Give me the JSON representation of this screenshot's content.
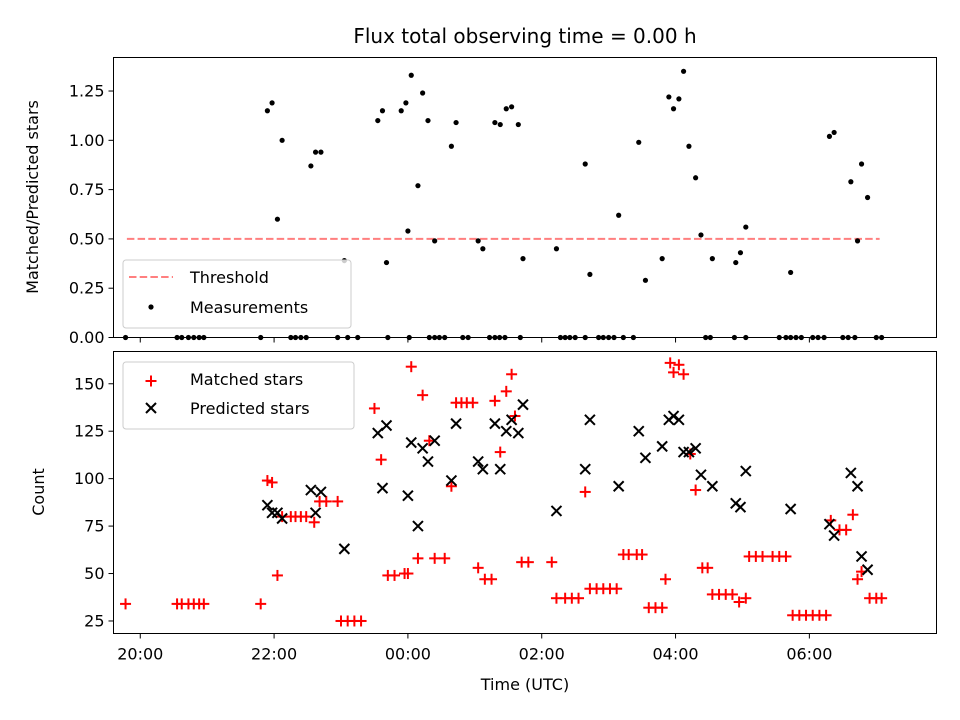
{
  "figure": {
    "title": "Flux total observing time = 0.00 h",
    "xlabel": "Time (UTC)"
  },
  "chart_data": [
    {
      "type": "scatter",
      "panel": "top",
      "ylabel": "Matched/Predicted stars",
      "xlim": [
        19.6,
        31.9
      ],
      "ylim": [
        0.0,
        1.42
      ],
      "yticks": [
        "0.00",
        "0.25",
        "0.50",
        "0.75",
        "1.00",
        "1.25"
      ],
      "threshold": {
        "name": "Threshold",
        "y": 0.5,
        "x": [
          19.8,
          31.05
        ],
        "color": "#ff7f7f"
      },
      "series": [
        {
          "name": "Measurements",
          "color": "#000000",
          "points": [
            [
              19.78,
              0.0
            ],
            [
              20.55,
              0.0
            ],
            [
              20.62,
              0.0
            ],
            [
              20.72,
              0.0
            ],
            [
              20.8,
              0.0
            ],
            [
              20.88,
              0.0
            ],
            [
              20.95,
              0.0
            ],
            [
              21.8,
              0.0
            ],
            [
              22.25,
              0.0
            ],
            [
              22.32,
              0.0
            ],
            [
              22.4,
              0.0
            ],
            [
              22.48,
              0.0
            ],
            [
              22.95,
              0.0
            ],
            [
              23.1,
              0.0
            ],
            [
              23.25,
              0.0
            ],
            [
              23.7,
              0.0
            ],
            [
              23.9,
              1.15
            ],
            [
              23.97,
              1.19
            ],
            [
              24.02,
              0.0
            ],
            [
              24.32,
              0.0
            ],
            [
              24.4,
              0.0
            ],
            [
              24.47,
              0.0
            ],
            [
              24.55,
              0.0
            ],
            [
              24.82,
              0.0
            ],
            [
              24.9,
              0.0
            ],
            [
              25.22,
              0.0
            ],
            [
              25.3,
              0.0
            ],
            [
              25.37,
              0.0
            ],
            [
              25.45,
              0.0
            ],
            [
              25.68,
              0.0
            ],
            [
              26.28,
              0.0
            ],
            [
              26.35,
              0.0
            ],
            [
              26.42,
              0.0
            ],
            [
              26.5,
              0.0
            ],
            [
              26.65,
              0.0
            ],
            [
              26.85,
              0.0
            ],
            [
              26.92,
              0.0
            ],
            [
              27.0,
              0.0
            ],
            [
              27.08,
              0.0
            ],
            [
              27.22,
              0.0
            ],
            [
              27.37,
              0.0
            ],
            [
              28.45,
              0.0
            ],
            [
              28.52,
              0.0
            ],
            [
              28.88,
              0.0
            ],
            [
              29.05,
              0.0
            ],
            [
              29.55,
              0.0
            ],
            [
              29.65,
              0.0
            ],
            [
              29.72,
              0.0
            ],
            [
              29.8,
              0.0
            ],
            [
              29.88,
              0.0
            ],
            [
              30.05,
              0.0
            ],
            [
              30.13,
              0.0
            ],
            [
              30.22,
              0.0
            ],
            [
              30.5,
              0.0
            ],
            [
              30.58,
              0.0
            ],
            [
              30.68,
              0.0
            ],
            [
              31.0,
              0.0
            ],
            [
              31.08,
              0.0
            ],
            [
              21.9,
              1.15
            ],
            [
              21.97,
              1.19
            ],
            [
              22.05,
              0.6
            ],
            [
              22.12,
              1.0
            ],
            [
              22.55,
              0.87
            ],
            [
              22.62,
              0.94
            ],
            [
              22.7,
              0.94
            ],
            [
              23.05,
              0.39
            ],
            [
              23.55,
              1.1
            ],
            [
              23.62,
              1.15
            ],
            [
              23.68,
              0.38
            ],
            [
              24.0,
              0.54
            ],
            [
              24.05,
              1.33
            ],
            [
              24.15,
              0.77
            ],
            [
              24.22,
              1.24
            ],
            [
              24.3,
              1.1
            ],
            [
              24.4,
              0.49
            ],
            [
              24.65,
              0.97
            ],
            [
              24.72,
              1.09
            ],
            [
              25.05,
              0.49
            ],
            [
              25.12,
              0.45
            ],
            [
              25.3,
              1.09
            ],
            [
              25.38,
              1.08
            ],
            [
              25.47,
              1.16
            ],
            [
              25.55,
              1.17
            ],
            [
              25.65,
              1.08
            ],
            [
              25.72,
              0.4
            ],
            [
              26.22,
              0.45
            ],
            [
              26.65,
              0.88
            ],
            [
              26.72,
              0.32
            ],
            [
              27.15,
              0.62
            ],
            [
              27.45,
              0.99
            ],
            [
              27.55,
              0.29
            ],
            [
              27.8,
              0.4
            ],
            [
              27.9,
              1.22
            ],
            [
              27.97,
              1.16
            ],
            [
              28.05,
              1.21
            ],
            [
              28.12,
              1.35
            ],
            [
              28.2,
              0.97
            ],
            [
              28.3,
              0.81
            ],
            [
              28.38,
              0.52
            ],
            [
              28.55,
              0.4
            ],
            [
              28.9,
              0.38
            ],
            [
              28.97,
              0.43
            ],
            [
              29.05,
              0.56
            ],
            [
              29.72,
              0.33
            ],
            [
              30.3,
              1.02
            ],
            [
              30.37,
              1.04
            ],
            [
              30.62,
              0.79
            ],
            [
              30.72,
              0.49
            ],
            [
              30.78,
              0.88
            ],
            [
              30.87,
              0.71
            ]
          ]
        }
      ]
    },
    {
      "type": "scatter",
      "panel": "bottom",
      "ylabel": "Count",
      "xlim": [
        19.6,
        31.9
      ],
      "ylim": [
        18.4,
        167
      ],
      "yticks": [
        "25",
        "50",
        "75",
        "100",
        "125",
        "150"
      ],
      "xticks": [
        {
          "x": 20,
          "label": "20:00"
        },
        {
          "x": 22,
          "label": "22:00"
        },
        {
          "x": 24,
          "label": "00:00"
        },
        {
          "x": 26,
          "label": "02:00"
        },
        {
          "x": 28,
          "label": "04:00"
        },
        {
          "x": 30,
          "label": "06:00"
        }
      ],
      "series": [
        {
          "name": "Matched stars",
          "marker": "plus",
          "color": "#ff0000",
          "points": [
            [
              19.78,
              34
            ],
            [
              20.55,
              34
            ],
            [
              20.62,
              34
            ],
            [
              20.72,
              34
            ],
            [
              20.8,
              34
            ],
            [
              20.88,
              34
            ],
            [
              20.95,
              34
            ],
            [
              21.8,
              34
            ],
            [
              21.9,
              99
            ],
            [
              21.97,
              98
            ],
            [
              22.05,
              49
            ],
            [
              22.12,
              80
            ],
            [
              22.25,
              80
            ],
            [
              22.32,
              80
            ],
            [
              22.4,
              80
            ],
            [
              22.48,
              80
            ],
            [
              22.6,
              77
            ],
            [
              22.68,
              88
            ],
            [
              22.78,
              88
            ],
            [
              22.95,
              88
            ],
            [
              23.0,
              25
            ],
            [
              23.1,
              25
            ],
            [
              23.2,
              25
            ],
            [
              23.3,
              25
            ],
            [
              23.5,
              137
            ],
            [
              23.6,
              110
            ],
            [
              23.7,
              49
            ],
            [
              23.8,
              49
            ],
            [
              23.95,
              50
            ],
            [
              24.0,
              50
            ],
            [
              24.05,
              159
            ],
            [
              24.15,
              58
            ],
            [
              24.22,
              144
            ],
            [
              24.32,
              120
            ],
            [
              24.4,
              58
            ],
            [
              24.55,
              58
            ],
            [
              24.65,
              96
            ],
            [
              24.72,
              140
            ],
            [
              24.8,
              140
            ],
            [
              24.88,
              140
            ],
            [
              24.97,
              140
            ],
            [
              25.05,
              53
            ],
            [
              25.15,
              47
            ],
            [
              25.25,
              47
            ],
            [
              25.3,
              141
            ],
            [
              25.38,
              114
            ],
            [
              25.47,
              146
            ],
            [
              25.55,
              155
            ],
            [
              25.6,
              133
            ],
            [
              25.7,
              56
            ],
            [
              25.8,
              56
            ],
            [
              26.15,
              56
            ],
            [
              26.22,
              37
            ],
            [
              26.35,
              37
            ],
            [
              26.45,
              37
            ],
            [
              26.55,
              37
            ],
            [
              26.65,
              93
            ],
            [
              26.72,
              42
            ],
            [
              26.82,
              42
            ],
            [
              26.92,
              42
            ],
            [
              27.02,
              42
            ],
            [
              27.12,
              42
            ],
            [
              27.22,
              60
            ],
            [
              27.3,
              60
            ],
            [
              27.42,
              60
            ],
            [
              27.5,
              60
            ],
            [
              27.6,
              32
            ],
            [
              27.7,
              32
            ],
            [
              27.8,
              32
            ],
            [
              27.85,
              47
            ],
            [
              27.92,
              161
            ],
            [
              27.97,
              156
            ],
            [
              28.05,
              160
            ],
            [
              28.12,
              155
            ],
            [
              28.22,
              113
            ],
            [
              28.3,
              94
            ],
            [
              28.4,
              53
            ],
            [
              28.48,
              53
            ],
            [
              28.55,
              39
            ],
            [
              28.65,
              39
            ],
            [
              28.75,
              39
            ],
            [
              28.85,
              39
            ],
            [
              28.95,
              35
            ],
            [
              29.05,
              37
            ],
            [
              29.1,
              59
            ],
            [
              29.2,
              59
            ],
            [
              29.3,
              59
            ],
            [
              29.45,
              59
            ],
            [
              29.55,
              59
            ],
            [
              29.65,
              59
            ],
            [
              29.75,
              28
            ],
            [
              29.85,
              28
            ],
            [
              29.95,
              28
            ],
            [
              30.05,
              28
            ],
            [
              30.15,
              28
            ],
            [
              30.25,
              28
            ],
            [
              30.32,
              78
            ],
            [
              30.45,
              73
            ],
            [
              30.55,
              73
            ],
            [
              30.65,
              81
            ],
            [
              30.72,
              47
            ],
            [
              30.78,
              51
            ],
            [
              30.9,
              37
            ],
            [
              31.0,
              37
            ],
            [
              31.08,
              37
            ]
          ]
        },
        {
          "name": "Predicted stars",
          "marker": "x",
          "color": "#000000",
          "points": [
            [
              21.9,
              86
            ],
            [
              21.97,
              82
            ],
            [
              22.05,
              82
            ],
            [
              22.12,
              79
            ],
            [
              22.55,
              94
            ],
            [
              22.62,
              82
            ],
            [
              22.7,
              93
            ],
            [
              23.05,
              63
            ],
            [
              23.55,
              124
            ],
            [
              23.62,
              95
            ],
            [
              23.68,
              128
            ],
            [
              24.0,
              91
            ],
            [
              24.05,
              119
            ],
            [
              24.15,
              75
            ],
            [
              24.22,
              116
            ],
            [
              24.3,
              109
            ],
            [
              24.4,
              120
            ],
            [
              24.65,
              99
            ],
            [
              24.72,
              129
            ],
            [
              25.05,
              109
            ],
            [
              25.12,
              105
            ],
            [
              25.3,
              129
            ],
            [
              25.38,
              105
            ],
            [
              25.47,
              125
            ],
            [
              25.55,
              131
            ],
            [
              25.65,
              124
            ],
            [
              25.72,
              139
            ],
            [
              26.22,
              83
            ],
            [
              26.65,
              105
            ],
            [
              26.72,
              131
            ],
            [
              27.15,
              96
            ],
            [
              27.45,
              125
            ],
            [
              27.55,
              111
            ],
            [
              27.8,
              117
            ],
            [
              27.9,
              131
            ],
            [
              27.97,
              133
            ],
            [
              28.05,
              131
            ],
            [
              28.12,
              114
            ],
            [
              28.2,
              114
            ],
            [
              28.3,
              116
            ],
            [
              28.38,
              102
            ],
            [
              28.55,
              96
            ],
            [
              28.9,
              87
            ],
            [
              28.97,
              85
            ],
            [
              29.05,
              104
            ],
            [
              29.72,
              84
            ],
            [
              30.3,
              76
            ],
            [
              30.37,
              70
            ],
            [
              30.62,
              103
            ],
            [
              30.72,
              96
            ],
            [
              30.78,
              59
            ],
            [
              30.87,
              52
            ]
          ]
        }
      ]
    }
  ],
  "legends": {
    "top": [
      "Threshold",
      "Measurements"
    ],
    "bottom": [
      "Matched stars",
      "Predicted stars"
    ]
  }
}
